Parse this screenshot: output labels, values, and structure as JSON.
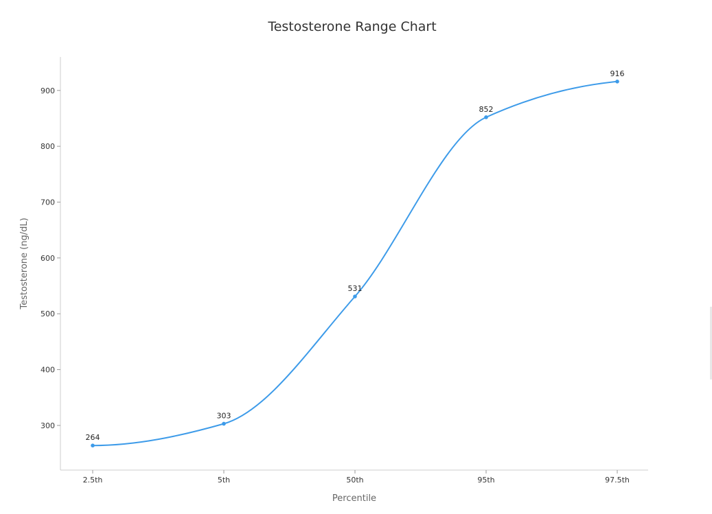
{
  "chart_data": {
    "type": "line",
    "title": "Testosterone Range Chart",
    "xlabel": "Percentile",
    "ylabel": "Testosterone (ng/dL)",
    "categories": [
      "2.5th",
      "5th",
      "50th",
      "95th",
      "97.5th"
    ],
    "series": [
      {
        "values": [
          264,
          303,
          531,
          852,
          916
        ],
        "color": "#3d9be9"
      }
    ],
    "data_labels": [
      "264",
      "303",
      "531",
      "852",
      "916"
    ],
    "y_ticks": [
      300,
      400,
      500,
      600,
      700,
      800,
      900
    ],
    "ylim": [
      220,
      960
    ],
    "curve": "smooth",
    "grid": false,
    "legend": "none"
  }
}
